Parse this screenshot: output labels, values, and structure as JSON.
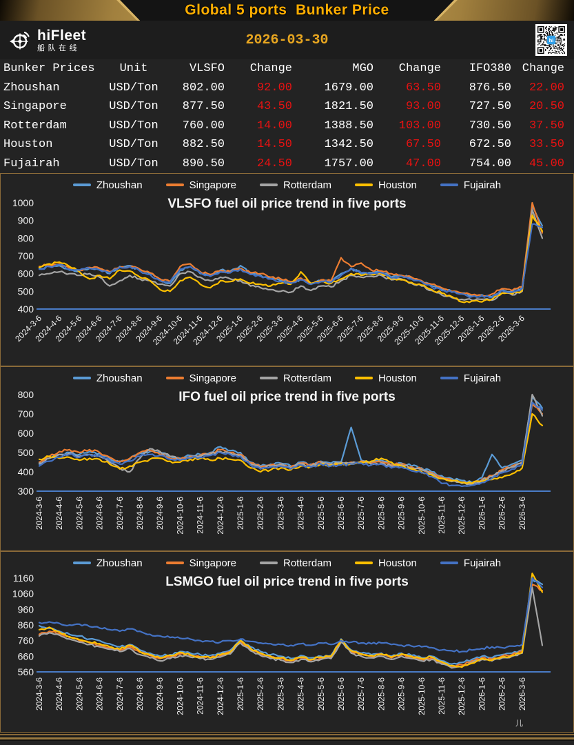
{
  "header": {
    "title": "Global 5 ports  Bunker Price",
    "brand": {
      "name": "hiFleet",
      "subtitle": "船队在线"
    },
    "date": "2026-03-30"
  },
  "table": {
    "columns": [
      "Bunker Prices",
      "Unit",
      "VLSFO",
      "Change",
      "MGO",
      "Change",
      "IFO380",
      "Change"
    ],
    "red_columns": [
      3,
      5,
      7
    ],
    "rows": [
      [
        "Zhoushan",
        "USD/Ton",
        "802.00",
        "92.00",
        "1679.00",
        "63.50",
        "876.50",
        "22.00"
      ],
      [
        "Singapore",
        "USD/Ton",
        "877.50",
        "43.50",
        "1821.50",
        "93.00",
        "727.50",
        "20.50"
      ],
      [
        "Rotterdam",
        "USD/Ton",
        "760.00",
        "14.00",
        "1388.50",
        "103.00",
        "730.50",
        "37.50"
      ],
      [
        "Houston",
        "USD/Ton",
        "882.50",
        "14.50",
        "1342.50",
        "67.50",
        "672.50",
        "33.50"
      ],
      [
        "Fujairah",
        "USD/Ton",
        "890.50",
        "24.50",
        "1757.00",
        "47.00",
        "754.00",
        "45.00"
      ]
    ]
  },
  "colors": {
    "accent_gold": "#FFAE00",
    "date_gold": "#E8A620",
    "change_red": "#E81212",
    "panel_border": "#8a6a38",
    "axis_blue": "#4a7cc7",
    "text_white": "#f5f5f5",
    "qr_logo_blue": "#2f9fe8"
  },
  "footer_mark": "儿",
  "chart_data": [
    {
      "type": "line",
      "title": "VLSFO fuel oil price trend in five ports",
      "ylim": [
        400,
        1000
      ],
      "y_ticks": [
        400,
        500,
        600,
        700,
        800,
        900,
        1000
      ],
      "x_labels": [
        "2024-3-6",
        "2024-4-6",
        "2024-5-6",
        "2024-6-6",
        "2024-7-6",
        "2024-8-6",
        "2024-9-6",
        "2024-10-6",
        "2024-11-6",
        "2024-12-6",
        "2025-1-6",
        "2025-2-6",
        "2025-3-6",
        "2025-4-6",
        "2025-5-6",
        "2025-6-6",
        "2025-7-6",
        "2025-8-6",
        "2025-9-6",
        "2025-10-6",
        "2025-11-6",
        "2025-12-6",
        "2026-1-6",
        "2026-2-6",
        "2026-3-6"
      ],
      "x_label_rotation": -45,
      "x_step_months": 0.5,
      "grid": false,
      "legend_position": "top",
      "noise": 7,
      "series": [
        {
          "name": "Zhoushan",
          "color": "#5B9BD5",
          "values": [
            630,
            640,
            645,
            620,
            615,
            630,
            625,
            600,
            640,
            645,
            620,
            600,
            565,
            545,
            620,
            640,
            600,
            590,
            620,
            615,
            645,
            600,
            590,
            570,
            560,
            545,
            570,
            540,
            560,
            555,
            600,
            630,
            600,
            605,
            610,
            580,
            590,
            575,
            560,
            530,
            510,
            500,
            490,
            475,
            480,
            470,
            510,
            500,
            520,
            980,
            870
          ]
        },
        {
          "name": "Singapore",
          "color": "#ED7D31",
          "values": [
            640,
            650,
            655,
            630,
            620,
            635,
            630,
            610,
            635,
            640,
            625,
            605,
            570,
            555,
            640,
            655,
            610,
            595,
            615,
            610,
            630,
            605,
            600,
            580,
            570,
            555,
            575,
            545,
            565,
            560,
            690,
            640,
            660,
            620,
            615,
            600,
            590,
            580,
            560,
            540,
            520,
            500,
            490,
            480,
            475,
            485,
            515,
            505,
            525,
            1000,
            830
          ]
        },
        {
          "name": "Rotterdam",
          "color": "#A5A5A5",
          "values": [
            590,
            600,
            610,
            600,
            590,
            600,
            580,
            530,
            560,
            590,
            570,
            560,
            540,
            530,
            600,
            610,
            580,
            560,
            580,
            570,
            560,
            530,
            520,
            510,
            500,
            495,
            530,
            505,
            530,
            525,
            560,
            590,
            580,
            585,
            590,
            565,
            570,
            545,
            530,
            505,
            480,
            465,
            455,
            450,
            455,
            450,
            490,
            480,
            500,
            960,
            800
          ]
        },
        {
          "name": "Houston",
          "color": "#FFC000",
          "values": [
            635,
            655,
            665,
            640,
            610,
            570,
            590,
            570,
            620,
            615,
            580,
            560,
            510,
            500,
            560,
            580,
            540,
            520,
            560,
            555,
            570,
            545,
            540,
            530,
            545,
            540,
            610,
            545,
            555,
            545,
            570,
            600,
            590,
            595,
            600,
            570,
            565,
            550,
            535,
            510,
            490,
            470,
            440,
            445,
            440,
            455,
            490,
            485,
            505,
            930,
            840
          ]
        },
        {
          "name": "Fujairah",
          "color": "#4472C4",
          "values": [
            625,
            640,
            650,
            625,
            620,
            630,
            620,
            605,
            635,
            640,
            615,
            595,
            560,
            550,
            625,
            640,
            605,
            585,
            610,
            605,
            625,
            595,
            585,
            570,
            555,
            545,
            565,
            540,
            555,
            550,
            590,
            625,
            605,
            600,
            605,
            575,
            585,
            570,
            555,
            525,
            505,
            495,
            485,
            470,
            475,
            465,
            505,
            495,
            515,
            880,
            860
          ]
        }
      ]
    },
    {
      "type": "line",
      "title": "IFO fuel oil price trend in five ports",
      "ylim": [
        300,
        800
      ],
      "y_ticks": [
        300,
        400,
        500,
        600,
        700,
        800
      ],
      "x_labels": [
        "2024-3-6",
        "2024-4-6",
        "2024-5-6",
        "2024-6-6",
        "2024-7-6",
        "2024-8-6",
        "2024-9-6",
        "2024-10-6",
        "2024-11-6",
        "2024-12-6",
        "2025-1-6",
        "2025-2-6",
        "2025-3-6",
        "2025-4-6",
        "2025-5-6",
        "2025-6-6",
        "2025-7-6",
        "2025-8-6",
        "2025-9-6",
        "2025-10-6",
        "2025-11-6",
        "2025-12-6",
        "2026-1-6",
        "2026-2-6",
        "2026-3-6"
      ],
      "x_label_rotation": -90,
      "x_step_months": 0.5,
      "grid": false,
      "legend_position": "top",
      "noise": 7,
      "series": [
        {
          "name": "Zhoushan",
          "color": "#5B9BD5",
          "values": [
            440,
            470,
            490,
            500,
            490,
            505,
            495,
            470,
            450,
            465,
            495,
            505,
            500,
            480,
            470,
            485,
            490,
            500,
            530,
            510,
            500,
            450,
            430,
            440,
            445,
            430,
            450,
            440,
            455,
            445,
            450,
            630,
            460,
            450,
            460,
            440,
            445,
            430,
            420,
            400,
            380,
            365,
            355,
            345,
            370,
            490,
            420,
            440,
            460,
            790,
            730
          ]
        },
        {
          "name": "Singapore",
          "color": "#ED7D31",
          "values": [
            450,
            480,
            505,
            515,
            500,
            515,
            500,
            475,
            455,
            470,
            500,
            510,
            490,
            470,
            465,
            480,
            485,
            495,
            515,
            500,
            490,
            445,
            425,
            435,
            440,
            425,
            445,
            435,
            450,
            440,
            445,
            450,
            455,
            445,
            450,
            435,
            440,
            425,
            415,
            395,
            370,
            355,
            345,
            340,
            360,
            380,
            410,
            430,
            450,
            750,
            700
          ]
        },
        {
          "name": "Rotterdam",
          "color": "#A5A5A5",
          "values": [
            445,
            470,
            490,
            495,
            480,
            490,
            480,
            450,
            420,
            400,
            470,
            520,
            505,
            480,
            465,
            475,
            480,
            490,
            505,
            495,
            485,
            440,
            420,
            430,
            435,
            420,
            440,
            430,
            445,
            440,
            450,
            445,
            450,
            440,
            445,
            430,
            435,
            420,
            410,
            390,
            365,
            350,
            340,
            335,
            355,
            375,
            405,
            425,
            445,
            800,
            690
          ]
        },
        {
          "name": "Houston",
          "color": "#FFC000",
          "values": [
            465,
            480,
            470,
            475,
            460,
            470,
            465,
            440,
            415,
            430,
            450,
            465,
            470,
            455,
            450,
            465,
            470,
            460,
            470,
            465,
            460,
            420,
            400,
            410,
            420,
            410,
            430,
            425,
            440,
            435,
            445,
            440,
            450,
            455,
            470,
            450,
            430,
            415,
            400,
            385,
            365,
            355,
            345,
            340,
            350,
            360,
            370,
            390,
            420,
            700,
            640
          ]
        },
        {
          "name": "Fujairah",
          "color": "#4472C4",
          "values": [
            430,
            455,
            475,
            490,
            475,
            490,
            485,
            460,
            440,
            455,
            480,
            490,
            485,
            465,
            460,
            470,
            475,
            485,
            500,
            490,
            480,
            435,
            415,
            425,
            430,
            415,
            435,
            425,
            440,
            430,
            435,
            440,
            445,
            435,
            440,
            420,
            425,
            405,
            395,
            375,
            340,
            330,
            325,
            330,
            345,
            365,
            395,
            415,
            440,
            760,
            720
          ]
        }
      ]
    },
    {
      "type": "line",
      "title": "LSMGO fuel oil price trend in five ports",
      "ylim": [
        560,
        1160
      ],
      "y_ticks": [
        560,
        660,
        760,
        860,
        960,
        1060,
        1160
      ],
      "x_labels": [
        "2024-3-6",
        "2024-4-6",
        "2024-5-6",
        "2024-6-6",
        "2024-7-6",
        "2024-8-6",
        "2024-9-6",
        "2024-10-6",
        "2024-11-6",
        "2024-12-6",
        "2025-1-6",
        "2025-2-6",
        "2025-3-6",
        "2025-4-6",
        "2025-5-6",
        "2025-6-6",
        "2025-7-6",
        "2025-8-6",
        "2025-9-6",
        "2025-10-6",
        "2025-11-6",
        "2025-12-6",
        "2026-1-6",
        "2026-2-6",
        "2026-3-6"
      ],
      "x_label_rotation": -90,
      "x_step_months": 0.5,
      "grid": false,
      "legend_position": "top",
      "noise": 7,
      "series": [
        {
          "name": "Zhoushan",
          "color": "#5B9BD5",
          "values": [
            855,
            840,
            820,
            800,
            790,
            770,
            760,
            740,
            720,
            735,
            700,
            680,
            660,
            670,
            690,
            680,
            670,
            665,
            680,
            700,
            765,
            720,
            690,
            670,
            660,
            645,
            665,
            650,
            660,
            665,
            770,
            700,
            680,
            670,
            680,
            660,
            680,
            665,
            650,
            660,
            630,
            610,
            620,
            640,
            660,
            650,
            670,
            680,
            700,
            1150,
            1120
          ]
        },
        {
          "name": "Singapore",
          "color": "#ED7D31",
          "values": [
            800,
            820,
            805,
            780,
            760,
            745,
            730,
            715,
            700,
            720,
            685,
            665,
            645,
            655,
            675,
            665,
            655,
            650,
            665,
            685,
            755,
            705,
            675,
            655,
            645,
            630,
            650,
            635,
            650,
            655,
            760,
            690,
            670,
            660,
            670,
            650,
            670,
            655,
            640,
            650,
            620,
            595,
            605,
            630,
            650,
            640,
            660,
            670,
            690,
            1120,
            1080
          ]
        },
        {
          "name": "Rotterdam",
          "color": "#A5A5A5",
          "values": [
            790,
            810,
            795,
            770,
            750,
            735,
            720,
            705,
            690,
            710,
            670,
            650,
            630,
            645,
            665,
            655,
            645,
            640,
            655,
            675,
            745,
            695,
            665,
            645,
            635,
            620,
            640,
            625,
            640,
            645,
            750,
            680,
            660,
            650,
            660,
            640,
            660,
            645,
            630,
            640,
            610,
            585,
            595,
            620,
            640,
            630,
            650,
            660,
            680,
            1100,
            730
          ]
        },
        {
          "name": "Houston",
          "color": "#FFC000",
          "values": [
            830,
            845,
            815,
            785,
            765,
            750,
            740,
            720,
            705,
            730,
            690,
            670,
            650,
            665,
            685,
            670,
            655,
            650,
            670,
            690,
            760,
            710,
            680,
            660,
            650,
            635,
            655,
            640,
            655,
            660,
            765,
            695,
            675,
            665,
            675,
            655,
            675,
            660,
            645,
            655,
            625,
            600,
            590,
            615,
            645,
            635,
            655,
            665,
            685,
            1190,
            1070
          ]
        },
        {
          "name": "Fujairah",
          "color": "#4472C4",
          "values": [
            875,
            880,
            870,
            860,
            865,
            850,
            840,
            830,
            820,
            835,
            820,
            800,
            790,
            780,
            775,
            770,
            760,
            755,
            750,
            760,
            770,
            755,
            745,
            740,
            735,
            730,
            740,
            730,
            745,
            735,
            760,
            750,
            745,
            740,
            745,
            735,
            730,
            725,
            720,
            715,
            700,
            695,
            690,
            700,
            710,
            720,
            715,
            725,
            735,
            1160,
            1100
          ]
        }
      ]
    }
  ]
}
